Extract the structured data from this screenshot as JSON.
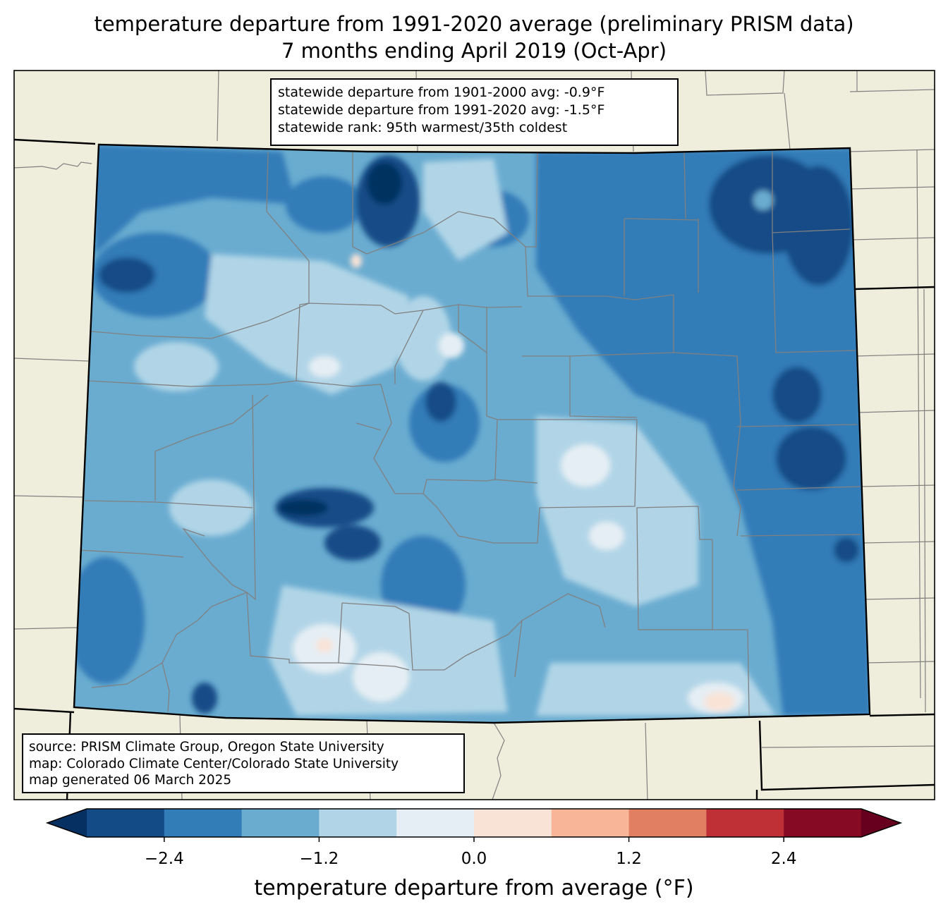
{
  "title": {
    "line1": "temperature departure from 1991-2020 average (preliminary PRISM data)",
    "line2": "7 months ending April 2019 (Oct-Apr)"
  },
  "stats_box": {
    "line1": "statewide departure from 1901-2000 avg: -0.9°F",
    "line2": "statewide departure from 1991-2020 avg: -1.5°F",
    "line3": "statewide rank: 95th warmest/35th coldest"
  },
  "source_box": {
    "line1": "source: PRISM Climate Group, Oregon State University",
    "line2": "map: Colorado Climate Center/Colorado State University",
    "line3": "map generated 06 March 2025"
  },
  "colorbar": {
    "label": "temperature departure from average (°F)",
    "ticks": [
      "−2.4",
      "−1.2",
      "0.0",
      "1.2",
      "2.4"
    ],
    "levels": [
      -3.0,
      -2.4,
      -1.8,
      -1.2,
      -0.6,
      0.0,
      0.6,
      1.2,
      1.8,
      2.4,
      3.0
    ],
    "colors": [
      "#053061",
      "#134b87",
      "#327cb8",
      "#6aacd0",
      "#b1d5e7",
      "#e5eef4",
      "#f9e3d7",
      "#f8b597",
      "#e17f63",
      "#be3036",
      "#870a24",
      "#67001f"
    ],
    "extend": "both"
  },
  "map": {
    "land_color": "#efeedc",
    "state_border_color": "#000000",
    "county_border_color": "#808080"
  }
}
